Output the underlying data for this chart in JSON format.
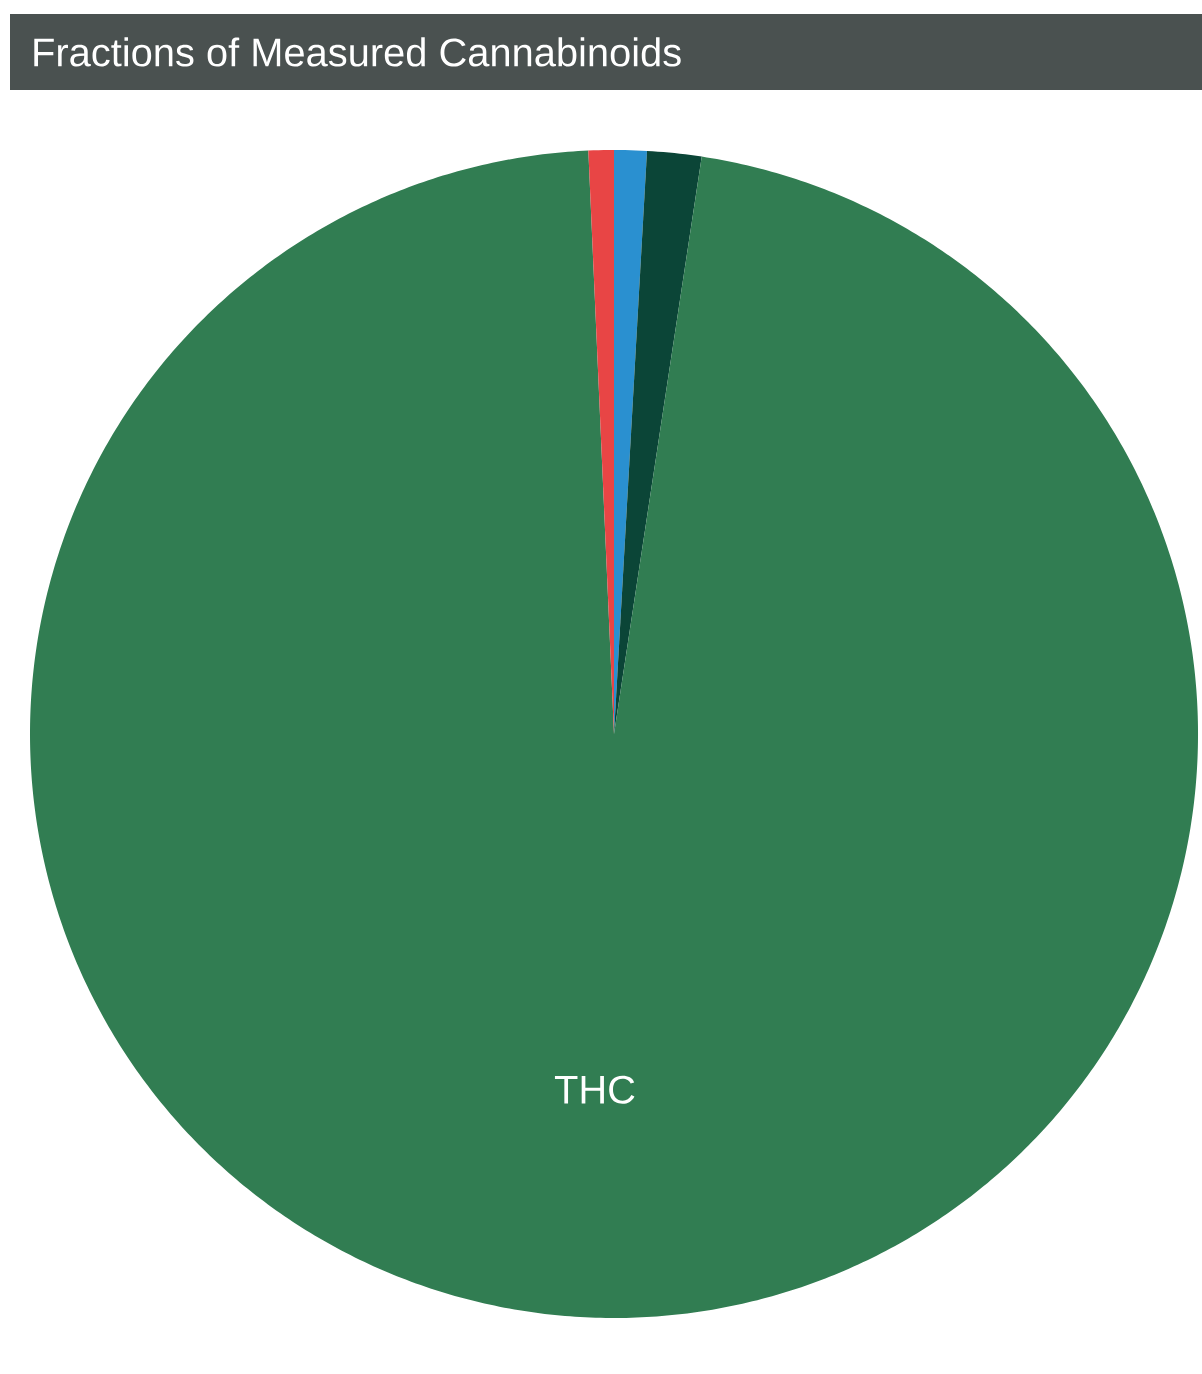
{
  "chart_data": {
    "type": "pie",
    "title": "Fractions of Measured Cannabinoids",
    "categories": [
      null,
      null,
      "THC",
      null
    ],
    "values": [
      0.9,
      1.5,
      96.9,
      0.7
    ],
    "colors": [
      "#2a90d0",
      "#0b4537",
      "#317d52",
      "#e84545"
    ]
  }
}
